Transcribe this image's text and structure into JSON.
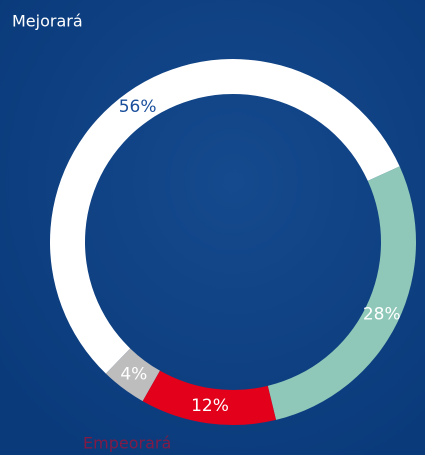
{
  "chart_data": {
    "type": "donut",
    "categories": [
      "Mejorará",
      null,
      "Empeorará",
      null
    ],
    "values": [
      56,
      28,
      12,
      4
    ],
    "value_labels": [
      "56%",
      "28%",
      "12%",
      "4%"
    ],
    "colors": [
      "#ffffff",
      "#8fc8b8",
      "#e2001a",
      "#bdbdbd"
    ]
  }
}
